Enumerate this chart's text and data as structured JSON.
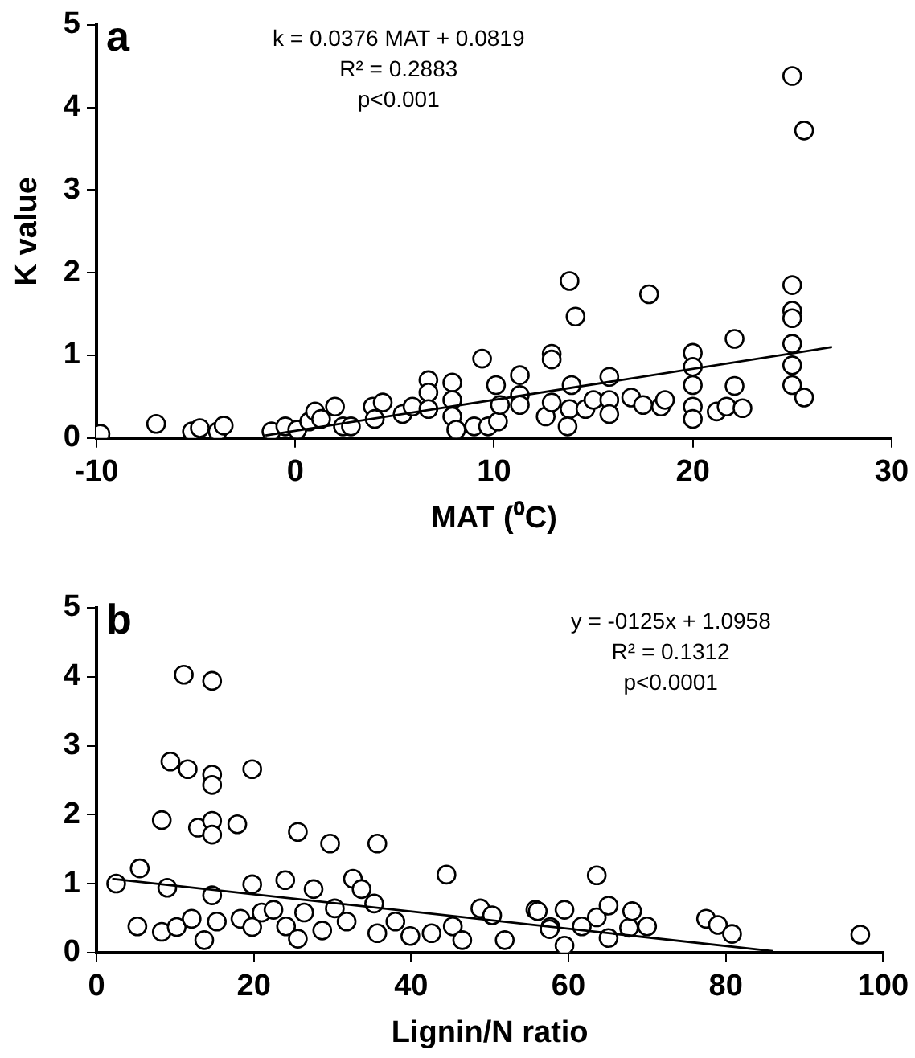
{
  "chart_data": [
    {
      "type": "scatter",
      "title": "a",
      "xlabel": "MAT (⁰C)",
      "ylabel": "K value",
      "xlim": [
        -10,
        30
      ],
      "xticks": [
        -10,
        0,
        10,
        20,
        30
      ],
      "ylim": [
        0,
        5
      ],
      "yticks": [
        0,
        1,
        2,
        3,
        4,
        5
      ],
      "grid": false,
      "legend": false,
      "annotations": [
        "k = 0.0376 MAT + 0.0819",
        "R² = 0.2883",
        "p<0.001"
      ],
      "series": [
        {
          "marker": "circle",
          "color": "#000000",
          "x": [
            -9.8,
            -7,
            -5.2,
            -4.8,
            -3.9,
            -3.6,
            -1.2,
            -0.5,
            0.1,
            0.7,
            1,
            2,
            1.3,
            2.4,
            2.8,
            3.9,
            4,
            4.4,
            5.4,
            5.9,
            6.7,
            6.7,
            6.7,
            7.9,
            7.9,
            7.9,
            8.1,
            9,
            9.4,
            10.1,
            9.7,
            10.2,
            10.3,
            11.3,
            11.3,
            11.3,
            12.9,
            12.9,
            13.8,
            14.1,
            13.9,
            13.8,
            13.7,
            12.6,
            12.9,
            14.6,
            15,
            15.8,
            15.8,
            15.8,
            16.9,
            17.5,
            17.8,
            18.4,
            18.6,
            20,
            20,
            20,
            20,
            20,
            21.2,
            21.7,
            22.5,
            22.1,
            22.1,
            25,
            25.6,
            25,
            25,
            25,
            25,
            25,
            25,
            25.6
          ],
          "values": [
            0.05,
            0.17,
            0.08,
            0.12,
            0.08,
            0.15,
            0.08,
            0.14,
            0.1,
            0.2,
            0.32,
            0.38,
            0.23,
            0.14,
            0.14,
            0.38,
            0.23,
            0.43,
            0.29,
            0.38,
            0.7,
            0.55,
            0.35,
            0.67,
            0.46,
            0.26,
            0.1,
            0.14,
            0.96,
            0.64,
            0.14,
            0.2,
            0.4,
            0.76,
            0.52,
            0.4,
            1.02,
            0.95,
            1.9,
            1.47,
            0.64,
            0.35,
            0.14,
            0.26,
            0.43,
            0.35,
            0.46,
            0.74,
            0.46,
            0.29,
            0.49,
            0.4,
            1.74,
            0.38,
            0.46,
            1.03,
            0.86,
            0.64,
            0.38,
            0.23,
            0.32,
            0.38,
            0.36,
            1.2,
            0.63,
            4.38,
            3.72,
            1.85,
            1.54,
            1.45,
            1.14,
            0.88,
            0.64,
            0.49
          ]
        },
        {
          "type": "line",
          "marker": "none",
          "color": "#000000",
          "x": [
            -1.5,
            27
          ],
          "values": [
            0.03,
            1.1
          ]
        }
      ]
    },
    {
      "type": "scatter",
      "title": "b",
      "xlabel": "Lignin/N ratio",
      "xlim": [
        0,
        100
      ],
      "xticks": [
        0,
        20,
        40,
        60,
        80,
        100
      ],
      "ylim": [
        0,
        5
      ],
      "yticks": [
        0,
        1,
        2,
        3,
        4,
        5
      ],
      "grid": false,
      "legend": false,
      "annotations": [
        "y = -0125x + 1.0958",
        "R² = 0.1312",
        "p<0.0001"
      ],
      "series": [
        {
          "marker": "circle",
          "color": "#000000",
          "x": [
            2.5,
            5.5,
            5.2,
            9,
            9.4,
            11.6,
            11.1,
            14.7,
            14.7,
            14.7,
            8.3,
            12.9,
            14.7,
            14.7,
            17.9,
            19.8,
            25.6,
            29.7,
            35.7,
            44.5,
            32.6,
            24,
            19.8,
            14.7,
            8.3,
            10.2,
            12.1,
            13.7,
            15.3,
            18.3,
            19.8,
            21,
            22.5,
            24.1,
            25.6,
            26.4,
            27.6,
            28.7,
            30.3,
            31.8,
            33.7,
            35.3,
            35.7,
            38,
            39.9,
            42.6,
            45.3,
            46.5,
            48.8,
            50.3,
            51.9,
            55.8,
            57.7,
            56.1,
            59.5,
            59.5,
            57.6,
            61.7,
            63.6,
            63.6,
            65.1,
            65.1,
            67.7,
            68.1,
            70,
            77.5,
            79,
            80.8,
            97.1
          ],
          "values": [
            1,
            1.22,
            0.38,
            0.94,
            2.77,
            2.66,
            4.03,
            3.94,
            2.58,
            2.43,
            1.92,
            1.81,
            1.91,
            1.71,
            1.86,
            2.66,
            1.75,
            1.58,
            1.58,
            1.13,
            1.07,
            1.05,
            0.99,
            0.83,
            0.3,
            0.37,
            0.49,
            0.18,
            0.45,
            0.49,
            0.37,
            0.58,
            0.62,
            0.38,
            0.2,
            0.58,
            0.92,
            0.32,
            0.64,
            0.45,
            0.92,
            0.71,
            0.28,
            0.45,
            0.24,
            0.28,
            0.38,
            0.18,
            0.64,
            0.54,
            0.18,
            0.62,
            0.37,
            0.6,
            0.62,
            0.1,
            0.34,
            0.38,
            1.12,
            0.51,
            0.68,
            0.21,
            0.36,
            0.6,
            0.38,
            0.49,
            0.4,
            0.27,
            0.26
          ]
        },
        {
          "type": "line",
          "marker": "none",
          "color": "#000000",
          "x": [
            2,
            86
          ],
          "values": [
            1.07,
            0.02
          ]
        }
      ]
    }
  ]
}
